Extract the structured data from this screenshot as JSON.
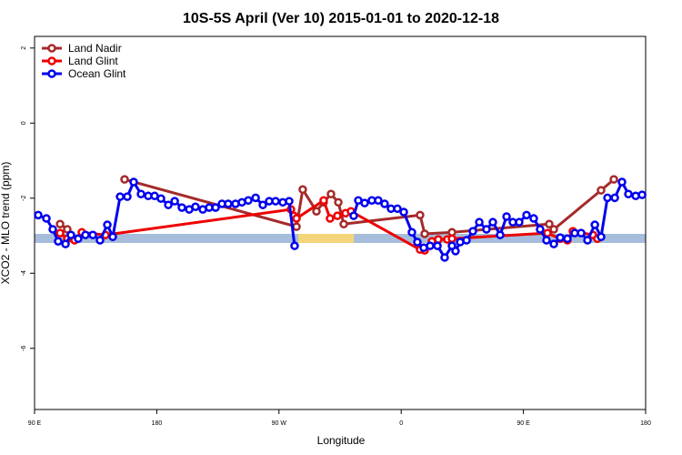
{
  "chart_data": {
    "type": "line",
    "title": "10S-5S April (Ver 10)   2015-01-01 to 2020-12-18",
    "x_label": "Longitude",
    "y_label": "XCO2 - MLO trend (ppm)",
    "xlim": [
      90,
      540
    ],
    "xticks": [
      {
        "value": 90,
        "label": "90 E"
      },
      180,
      {
        "value": 270,
        "label": "90 W"
      },
      {
        "value": 360,
        "label": "0"
      },
      {
        "value": 450,
        "label": "90 E"
      },
      {
        "value": 540,
        "label": "180"
      }
    ],
    "ylim": [
      -7.63,
      2.31
    ],
    "yticks": [
      2,
      0,
      -2,
      -4,
      -6
    ],
    "grid": false,
    "legend": "top-left",
    "series": [
      {
        "name": "Land Nadir",
        "color": "#a52a2a",
        "x": [
          108.8,
          114.1,
          150.3,
          156.3,
          282.9,
          287.5,
          297.6,
          302.9,
          308.3,
          313.7,
          317.7,
          373.9,
          377.3,
          397.4,
          469.0,
          472.4,
          507.2,
          516.6
        ],
        "values": [
          -2.69,
          -2.83,
          null,
          -1.5,
          -2.76,
          -1.77,
          -2.35,
          -2.11,
          -1.89,
          -2.11,
          -2.69,
          -2.45,
          -2.95,
          -2.91,
          -2.69,
          -2.83,
          -1.79,
          -1.5
        ]
      },
      {
        "name": "Land Glint",
        "color": "#ee0000",
        "x": [
          108.8,
          114.1,
          119.5,
          124.8,
          142.2,
          278.8,
          280.9,
          282.9,
          302.9,
          307.6,
          313.0,
          319.0,
          323.0,
          373.9,
          377.3,
          382.6,
          387.3,
          394.0,
          397.4,
          467.7,
          477.1,
          482.4,
          486.4,
          501.2,
          504.5
        ],
        "values": [
          -2.93,
          -3.08,
          -3.12,
          -2.91,
          -2.98,
          -2.3,
          -2.47,
          -2.54,
          -2.06,
          -2.54,
          -2.47,
          -2.4,
          -2.35,
          -3.37,
          -3.39,
          -3.15,
          -3.1,
          -3.1,
          -3.08,
          -2.93,
          -3.08,
          -3.12,
          -2.88,
          -2.98,
          -3.08
        ]
      },
      {
        "name": "Ocean Glint",
        "color": "#0000ee",
        "x": [
          92.7,
          98.7,
          103.4,
          107.4,
          112.8,
          116.8,
          122.1,
          127.5,
          132.9,
          138.2,
          143.6,
          147.6,
          153.0,
          158.3,
          163.0,
          168.4,
          173.7,
          178.4,
          183.1,
          188.5,
          193.2,
          198.5,
          203.9,
          208.5,
          213.9,
          218.6,
          223.3,
          228.0,
          232.6,
          238.0,
          242.7,
          247.4,
          252.8,
          258.1,
          262.8,
          267.5,
          272.8,
          277.5,
          281.5,
          300.0,
          325.0,
          328.4,
          333.1,
          338.4,
          343.1,
          347.8,
          352.5,
          357.2,
          361.9,
          367.9,
          371.9,
          376.6,
          381.3,
          386.7,
          392.0,
          397.4,
          400.0,
          403.4,
          408.1,
          412.8,
          417.5,
          422.8,
          427.5,
          432.9,
          437.6,
          442.2,
          446.9,
          452.3,
          457.6,
          462.3,
          467.0,
          472.4,
          477.1,
          482.4,
          487.8,
          492.5,
          497.2,
          502.6,
          507.2,
          511.9,
          517.3,
          522.6,
          527.3,
          532.7,
          537.4
        ],
        "values": [
          -2.45,
          -2.54,
          -2.83,
          -3.15,
          -3.22,
          -2.98,
          -3.08,
          -2.98,
          -2.98,
          -3.12,
          -2.71,
          -3.03,
          -1.96,
          -1.96,
          -1.57,
          -1.89,
          -1.94,
          -1.94,
          -2.01,
          -2.18,
          -2.08,
          -2.25,
          -2.3,
          -2.23,
          -2.3,
          -2.25,
          -2.25,
          -2.15,
          -2.15,
          -2.15,
          -2.11,
          -2.06,
          -1.99,
          -2.18,
          -2.08,
          -2.08,
          -2.11,
          -2.08,
          -3.27,
          null,
          -2.47,
          -2.06,
          -2.13,
          -2.06,
          -2.06,
          -2.15,
          -2.28,
          -2.28,
          -2.37,
          -2.91,
          -3.17,
          -3.32,
          -3.27,
          -3.27,
          -3.58,
          -3.27,
          -3.41,
          -3.17,
          -3.12,
          -2.88,
          -2.64,
          -2.83,
          -2.64,
          -2.98,
          -2.49,
          -2.64,
          -2.64,
          -2.45,
          -2.54,
          -2.83,
          -3.12,
          -3.22,
          -3.05,
          -3.08,
          -2.93,
          -2.93,
          -3.12,
          -2.71,
          -3.03,
          -1.99,
          -1.99,
          -1.57,
          -1.89,
          -1.94,
          -1.91
        ]
      }
    ]
  }
}
